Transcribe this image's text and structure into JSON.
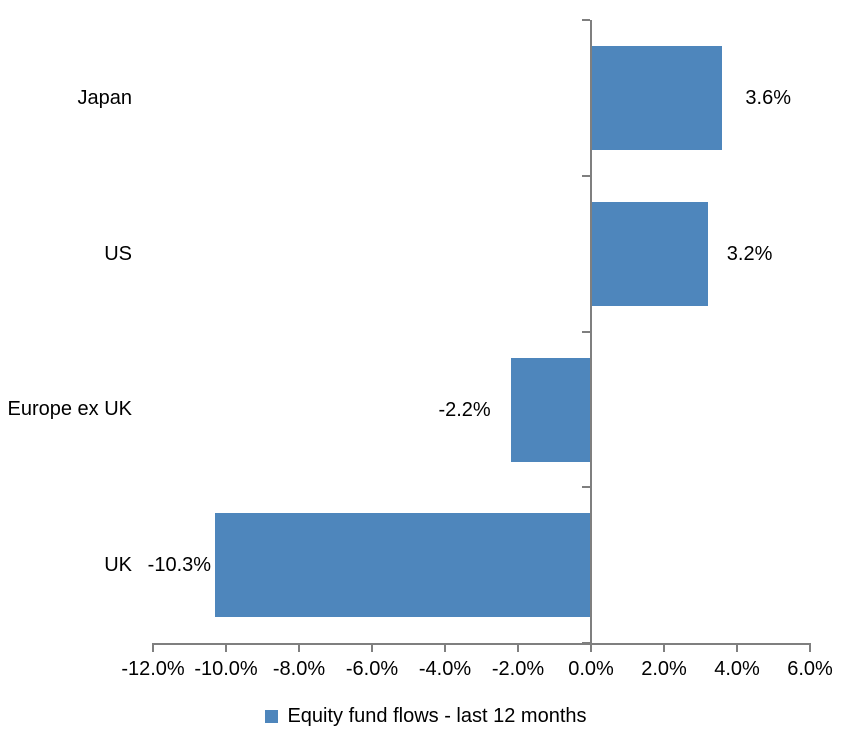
{
  "chart_data": {
    "type": "bar",
    "orientation": "horizontal",
    "title": "",
    "categories": [
      "Japan",
      "US",
      "Europe ex UK",
      "UK"
    ],
    "series": [
      {
        "name": "Equity fund flows - last 12 months",
        "values": [
          3.6,
          3.2,
          -2.2,
          -10.3
        ],
        "data_labels": [
          "3.6%",
          "3.2%",
          "-2.2%",
          "-10.3%"
        ]
      }
    ],
    "xlabel": "",
    "ylabel": "",
    "xlim": [
      -12,
      6
    ],
    "x_ticks": [
      -12,
      -10,
      -8,
      -6,
      -4,
      -2,
      0,
      2,
      4,
      6
    ],
    "x_tick_labels": [
      "-12.0%",
      "-10.0%",
      "-8.0%",
      "-6.0%",
      "-4.0%",
      "-2.0%",
      "0.0%",
      "2.0%",
      "4.0%",
      "6.0%"
    ],
    "grid": false,
    "legend_position": "bottom",
    "bar_color": "#4E86BC",
    "axis_color": "#7F7F7F",
    "text_color": "#000000"
  },
  "legend": {
    "label": "Equity fund flows - last 12 months",
    "swatch_color": "#4E86BC"
  }
}
